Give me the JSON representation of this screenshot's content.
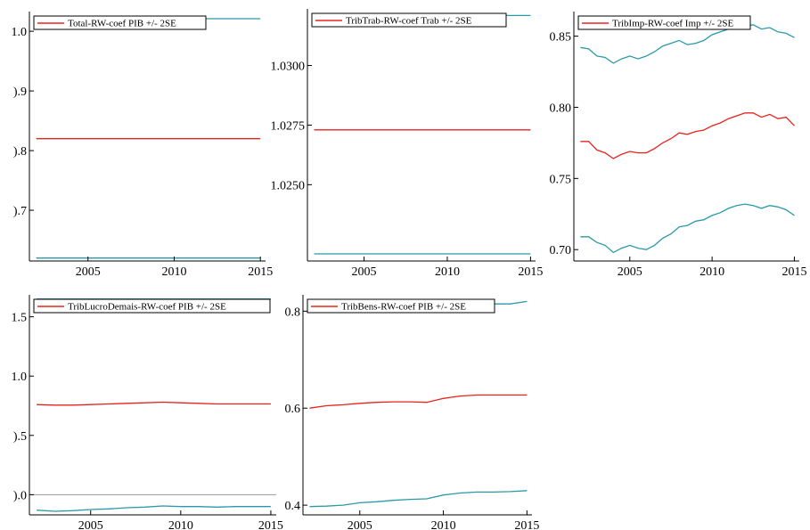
{
  "colors": {
    "estimate": "#e8231d",
    "band": "#2a9aa8",
    "zero_line": "#9a9a9a",
    "axis": "#000000"
  },
  "chart_data": [
    {
      "type": "line",
      "legend": "Total-RW-coef PIB +/- 2SE",
      "xlim": [
        2001.6,
        2015.3
      ],
      "ylim": [
        0.615,
        1.03
      ],
      "xticks": [
        2005,
        2010,
        2015
      ],
      "xtick_labels": [
        "2005",
        "2010",
        "2015"
      ],
      "yticks": [
        0.7,
        0.8,
        0.9,
        1.0
      ],
      "ytick_labels": [
        ").7",
        ").8",
        ").9",
        "1.0"
      ],
      "x": [
        2002,
        2015
      ],
      "series": [
        {
          "role": "estimate",
          "values": [
            0.82,
            0.82
          ]
        },
        {
          "role": "upper",
          "values": [
            1.021,
            1.021
          ]
        },
        {
          "role": "lower",
          "values": [
            0.62,
            0.62
          ]
        }
      ]
    },
    {
      "type": "line",
      "legend": "TribTrab-RW-coef Trab +/- 2SE",
      "xlim": [
        2001.6,
        2015.3
      ],
      "ylim": [
        1.0218,
        1.0323
      ],
      "xticks": [
        2005,
        2010,
        2015
      ],
      "xtick_labels": [
        "2005",
        "2010",
        "2015"
      ],
      "yticks": [
        1.025,
        1.0275,
        1.03
      ],
      "ytick_labels": [
        "1.0250",
        "1.0275",
        "1.0300"
      ],
      "x": [
        2002,
        2015
      ],
      "series": [
        {
          "role": "estimate",
          "values": [
            1.0273,
            1.0273
          ]
        },
        {
          "role": "upper",
          "values": [
            1.0321,
            1.0321
          ]
        },
        {
          "role": "lower",
          "values": [
            1.0221,
            1.0221
          ]
        }
      ]
    },
    {
      "type": "line",
      "legend": "TribImp-RW-coef Imp +/- 2SE",
      "xlim": [
        2001.6,
        2015.3
      ],
      "ylim": [
        0.692,
        0.866
      ],
      "xticks": [
        2005,
        2010,
        2015
      ],
      "xtick_labels": [
        "2005",
        "2010",
        "2015"
      ],
      "yticks": [
        0.7,
        0.75,
        0.8,
        0.85
      ],
      "ytick_labels": [
        "0.70",
        "0.75",
        "0.80",
        "0.85"
      ],
      "x": [
        2002.0,
        2002.5,
        2003.0,
        2003.5,
        2004.0,
        2004.5,
        2005.0,
        2005.5,
        2006.0,
        2006.5,
        2007.0,
        2007.5,
        2008.0,
        2008.5,
        2009.0,
        2009.5,
        2010.0,
        2010.5,
        2011.0,
        2011.5,
        2012.0,
        2012.5,
        2013.0,
        2013.5,
        2014.0,
        2014.5,
        2015.0
      ],
      "series": [
        {
          "role": "estimate",
          "values": [
            0.776,
            0.776,
            0.77,
            0.768,
            0.764,
            0.767,
            0.769,
            0.768,
            0.768,
            0.771,
            0.775,
            0.778,
            0.782,
            0.781,
            0.783,
            0.784,
            0.787,
            0.789,
            0.792,
            0.794,
            0.796,
            0.796,
            0.793,
            0.795,
            0.792,
            0.793,
            0.787
          ]
        },
        {
          "role": "upper",
          "values": [
            0.842,
            0.841,
            0.836,
            0.835,
            0.831,
            0.834,
            0.836,
            0.834,
            0.836,
            0.839,
            0.843,
            0.845,
            0.847,
            0.844,
            0.845,
            0.847,
            0.851,
            0.853,
            0.855,
            0.855,
            0.857,
            0.858,
            0.855,
            0.856,
            0.853,
            0.852,
            0.849
          ]
        },
        {
          "role": "lower",
          "values": [
            0.709,
            0.709,
            0.705,
            0.703,
            0.698,
            0.701,
            0.703,
            0.701,
            0.7,
            0.703,
            0.708,
            0.711,
            0.716,
            0.717,
            0.72,
            0.721,
            0.724,
            0.726,
            0.729,
            0.731,
            0.732,
            0.731,
            0.729,
            0.731,
            0.73,
            0.728,
            0.724
          ]
        }
      ]
    },
    {
      "type": "line",
      "legend": "TribLucroDemais-RW-coef PIB +/- 2SE",
      "xlim": [
        2001.6,
        2015.3
      ],
      "ylim": [
        -0.17,
        1.67
      ],
      "xticks": [
        2005,
        2010,
        2015
      ],
      "xtick_labels": [
        "2005",
        "2010",
        "2015"
      ],
      "yticks": [
        0.0,
        0.5,
        1.0,
        1.5
      ],
      "ytick_labels": [
        ").0",
        ").5",
        "1.0",
        "1.5"
      ],
      "zero_line": 0.0,
      "x": [
        2002,
        2003,
        2004,
        2005,
        2006,
        2007,
        2008,
        2009,
        2010,
        2011,
        2012,
        2013,
        2014,
        2015
      ],
      "series": [
        {
          "role": "estimate",
          "values": [
            0.76,
            0.755,
            0.755,
            0.76,
            0.765,
            0.77,
            0.775,
            0.78,
            0.775,
            0.77,
            0.765,
            0.765,
            0.765,
            0.765
          ]
        },
        {
          "role": "upper",
          "values": [
            1.65,
            1.65,
            1.65,
            1.65,
            1.65,
            1.65,
            1.65,
            1.65,
            1.65,
            1.65,
            1.65,
            1.65,
            1.65,
            1.65
          ]
        },
        {
          "role": "lower",
          "values": [
            -0.13,
            -0.14,
            -0.135,
            -0.125,
            -0.12,
            -0.11,
            -0.105,
            -0.095,
            -0.1,
            -0.1,
            -0.105,
            -0.1,
            -0.1,
            -0.1
          ]
        }
      ]
    },
    {
      "type": "line",
      "legend": "TribBens-RW-coef PIB +/- 2SE",
      "xlim": [
        2001.6,
        2015.3
      ],
      "ylim": [
        0.38,
        0.83
      ],
      "xticks": [
        2005,
        2010,
        2015
      ],
      "xtick_labels": [
        "2005",
        "2010",
        "2015"
      ],
      "yticks": [
        0.4,
        0.6,
        0.8
      ],
      "ytick_labels": [
        "0.4",
        "0.6",
        "0.8"
      ],
      "x": [
        2002,
        2003,
        2004,
        2005,
        2006,
        2007,
        2008,
        2009,
        2010,
        2011,
        2012,
        2013,
        2014,
        2015
      ],
      "series": [
        {
          "role": "estimate",
          "values": [
            0.6,
            0.605,
            0.607,
            0.61,
            0.612,
            0.613,
            0.613,
            0.612,
            0.62,
            0.625,
            0.627,
            0.627,
            0.627,
            0.627
          ]
        },
        {
          "role": "upper",
          "values": [
            0.815,
            0.815,
            0.815,
            0.815,
            0.815,
            0.815,
            0.815,
            0.815,
            0.815,
            0.815,
            0.815,
            0.815,
            0.815,
            0.82
          ]
        },
        {
          "role": "lower",
          "values": [
            0.397,
            0.398,
            0.4,
            0.405,
            0.407,
            0.41,
            0.412,
            0.413,
            0.421,
            0.425,
            0.427,
            0.427,
            0.428,
            0.43
          ]
        }
      ]
    }
  ]
}
